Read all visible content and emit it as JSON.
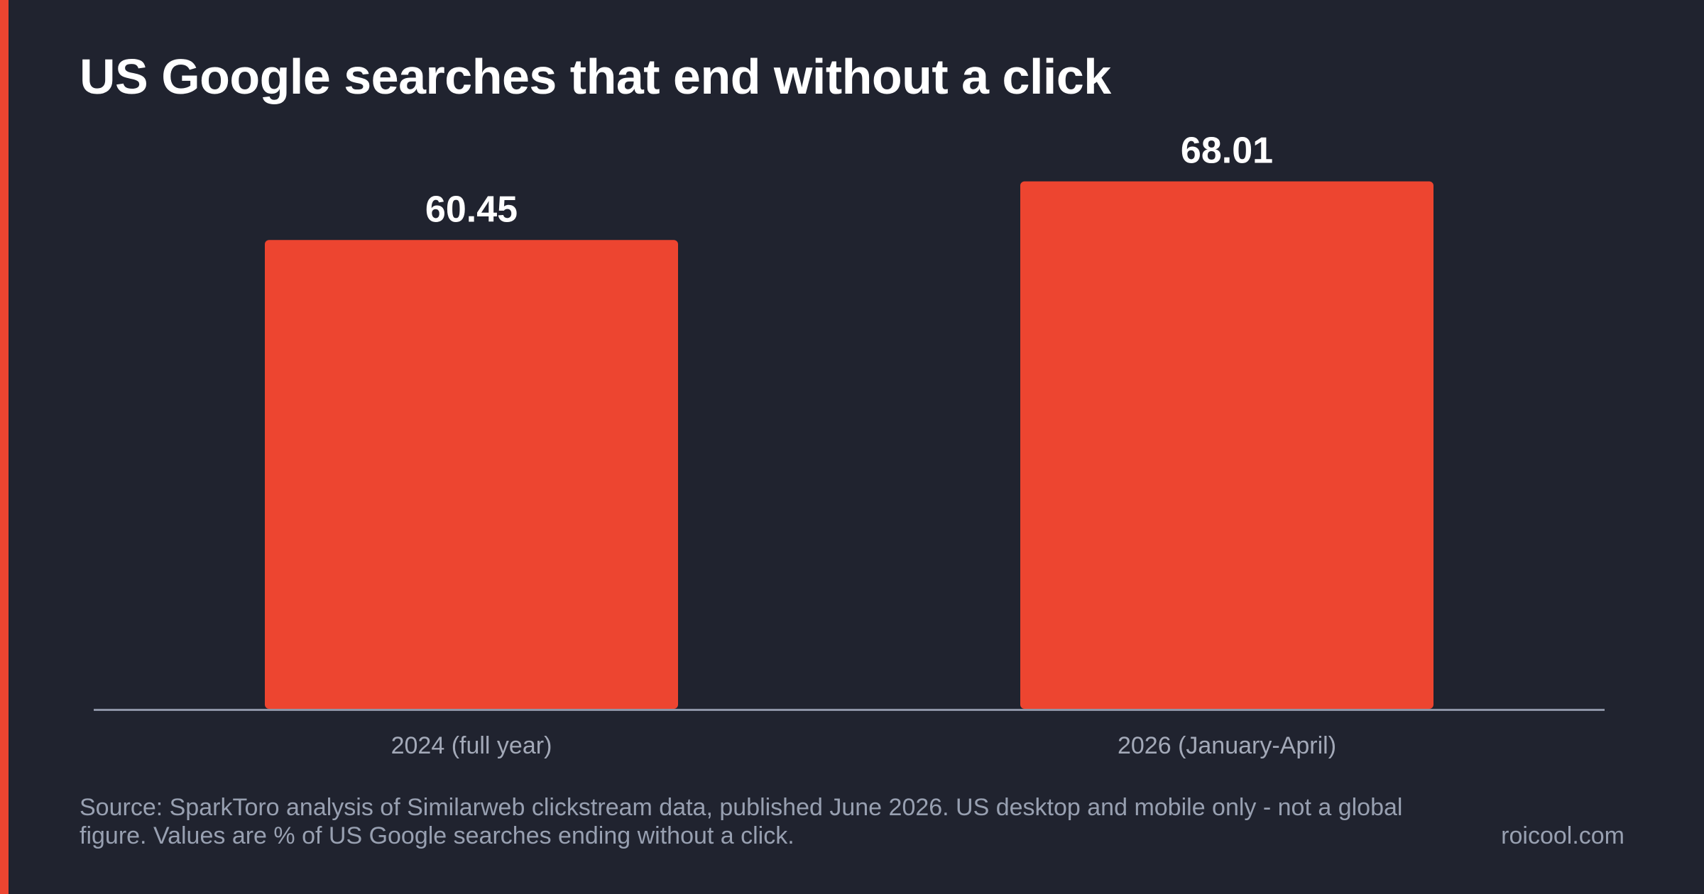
{
  "title": "US Google searches that end without a click",
  "source_note": "Source: SparkToro analysis of Similarweb clickstream data, published June 2026. US desktop and mobile only - not a global figure. Values are % of US Google searches ending without a click.",
  "site_credit": "roicool.com",
  "colors": {
    "background": "#20232f",
    "accent": "#ed4530",
    "bar": "#ed4530",
    "axis": "#8d94a6",
    "tick_label": "#a3a9b8",
    "value_label": "#ffffff",
    "muted_text": "#98a0b1"
  },
  "chart_data": {
    "type": "bar",
    "title": "US Google searches that end without a click",
    "categories": [
      "2024 (full year)",
      "2026 (January-April)"
    ],
    "values": [
      60.45,
      68.01
    ],
    "value_labels": [
      "60.45",
      "68.01"
    ],
    "xlabel": "",
    "ylabel": "",
    "ylim": [
      0,
      70
    ],
    "grid": false,
    "legend": "none"
  }
}
